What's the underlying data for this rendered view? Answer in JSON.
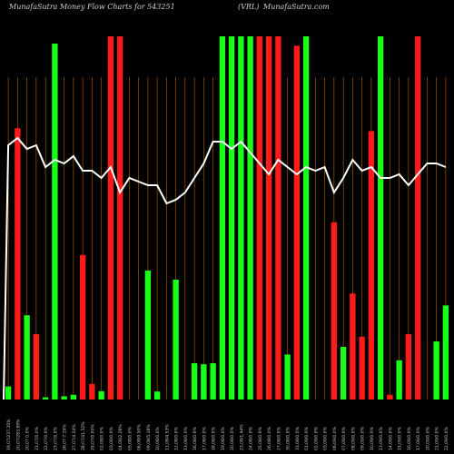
{
  "header": {
    "left_text": "MunafaSutra  Money Flow  Charts for 543251",
    "mid_text": "(VRL)",
    "right_text": "MunafaSutra.com"
  },
  "chart_data": {
    "type": "bar",
    "title": "MunafaSutra  Money Flow  Charts for 543251",
    "subtitle": "(VRL)",
    "source": "MunafaSutra.com",
    "ylim": [
      0,
      100
    ],
    "categories": [
      "19,07/237.35%",
      "20,07/283.89%",
      "20,07 0.0%",
      "21,07/0.0%",
      "22,07/0.0%",
      "23,07/0.0%",
      "26,07 7.19%",
      "27,07/4.54%",
      "28,07/41.52%",
      "29,07/0.00%",
      "02,08/0.0%",
      "03,08/0.0%",
      "04,08/2.26%",
      "05,08/0.0%",
      "06,08/9.50%",
      "09,08/5.18%",
      "10,08/0.0%",
      "11,08/4.53%",
      "12,08/0.0%",
      "13,08/0.0%",
      "16,08/0.0%",
      "17,08/0.0%",
      "18,08/0.0%",
      "19,08/0.0%",
      "20,08/0.0%",
      "23,08/1.44%",
      "24,08/0.0%",
      "25,08/0.0%",
      "26,08/0.0%",
      "27,08/0.0%",
      "30,08/0.0%",
      "31,08/0.0%",
      "01,09/0.0%",
      "02,09/0.0%",
      "03,09/0.0%",
      "06,09/0.0%",
      "07,09/0.0%",
      "08,09/0.0%",
      "09,09/0.0%",
      "10,09/0.0%",
      "13,09/0.0%",
      "14,09/0.0%",
      "15,09/0.0%",
      "16,09/0.0%",
      "17,09/0.0%",
      "20,09/0.0%",
      "21,09/0.0%",
      "22,09/0.0%"
    ],
    "bar_colors": [
      "green",
      "red",
      "green",
      "red",
      "green",
      "green",
      "green",
      "green",
      "red",
      "red",
      "green",
      "red",
      "red",
      "green",
      "red",
      "green",
      "green",
      "red",
      "green",
      "green",
      "green",
      "green",
      "green",
      "green",
      "green",
      "green",
      "green",
      "red",
      "red",
      "red",
      "green",
      "red",
      "green",
      "red",
      "green",
      "red",
      "green",
      "red",
      "red",
      "red",
      "green",
      "red",
      "green",
      "red",
      "red",
      "red",
      "green",
      "green"
    ],
    "values": [
      3.6,
      74.7,
      23.2,
      18.0,
      0.6,
      98.0,
      0.9,
      1.3,
      39.8,
      4.3,
      2.3,
      100,
      100,
      0,
      0,
      35.5,
      2.2,
      0,
      33.0,
      0,
      10.0,
      9.7,
      10.0,
      100,
      100,
      100,
      100,
      100,
      100,
      100,
      12.4,
      97.4,
      100,
      0,
      0,
      48.8,
      14.5,
      29.2,
      17.3,
      73.9,
      100,
      1.3,
      10.8,
      18.0,
      100,
      0,
      16.0,
      25.9
    ],
    "money_flow_line": [
      70,
      72,
      69,
      70,
      64,
      66,
      65,
      67,
      63,
      63,
      61,
      64,
      57,
      61,
      60,
      59,
      59,
      54,
      55,
      57,
      61,
      65,
      71,
      71,
      69,
      71,
      68,
      65,
      62,
      66,
      64,
      62,
      64,
      63,
      64,
      57,
      61,
      66,
      63,
      64,
      61,
      61,
      62,
      59,
      62,
      65,
      65,
      64
    ],
    "line_ylim": [
      0,
      100
    ],
    "colors": {
      "green": "#18ff18",
      "red": "#ff1a1a",
      "line": "#ffffff",
      "grid": "#b86a00",
      "background": "#000000"
    },
    "grid": true,
    "legend": "none"
  }
}
